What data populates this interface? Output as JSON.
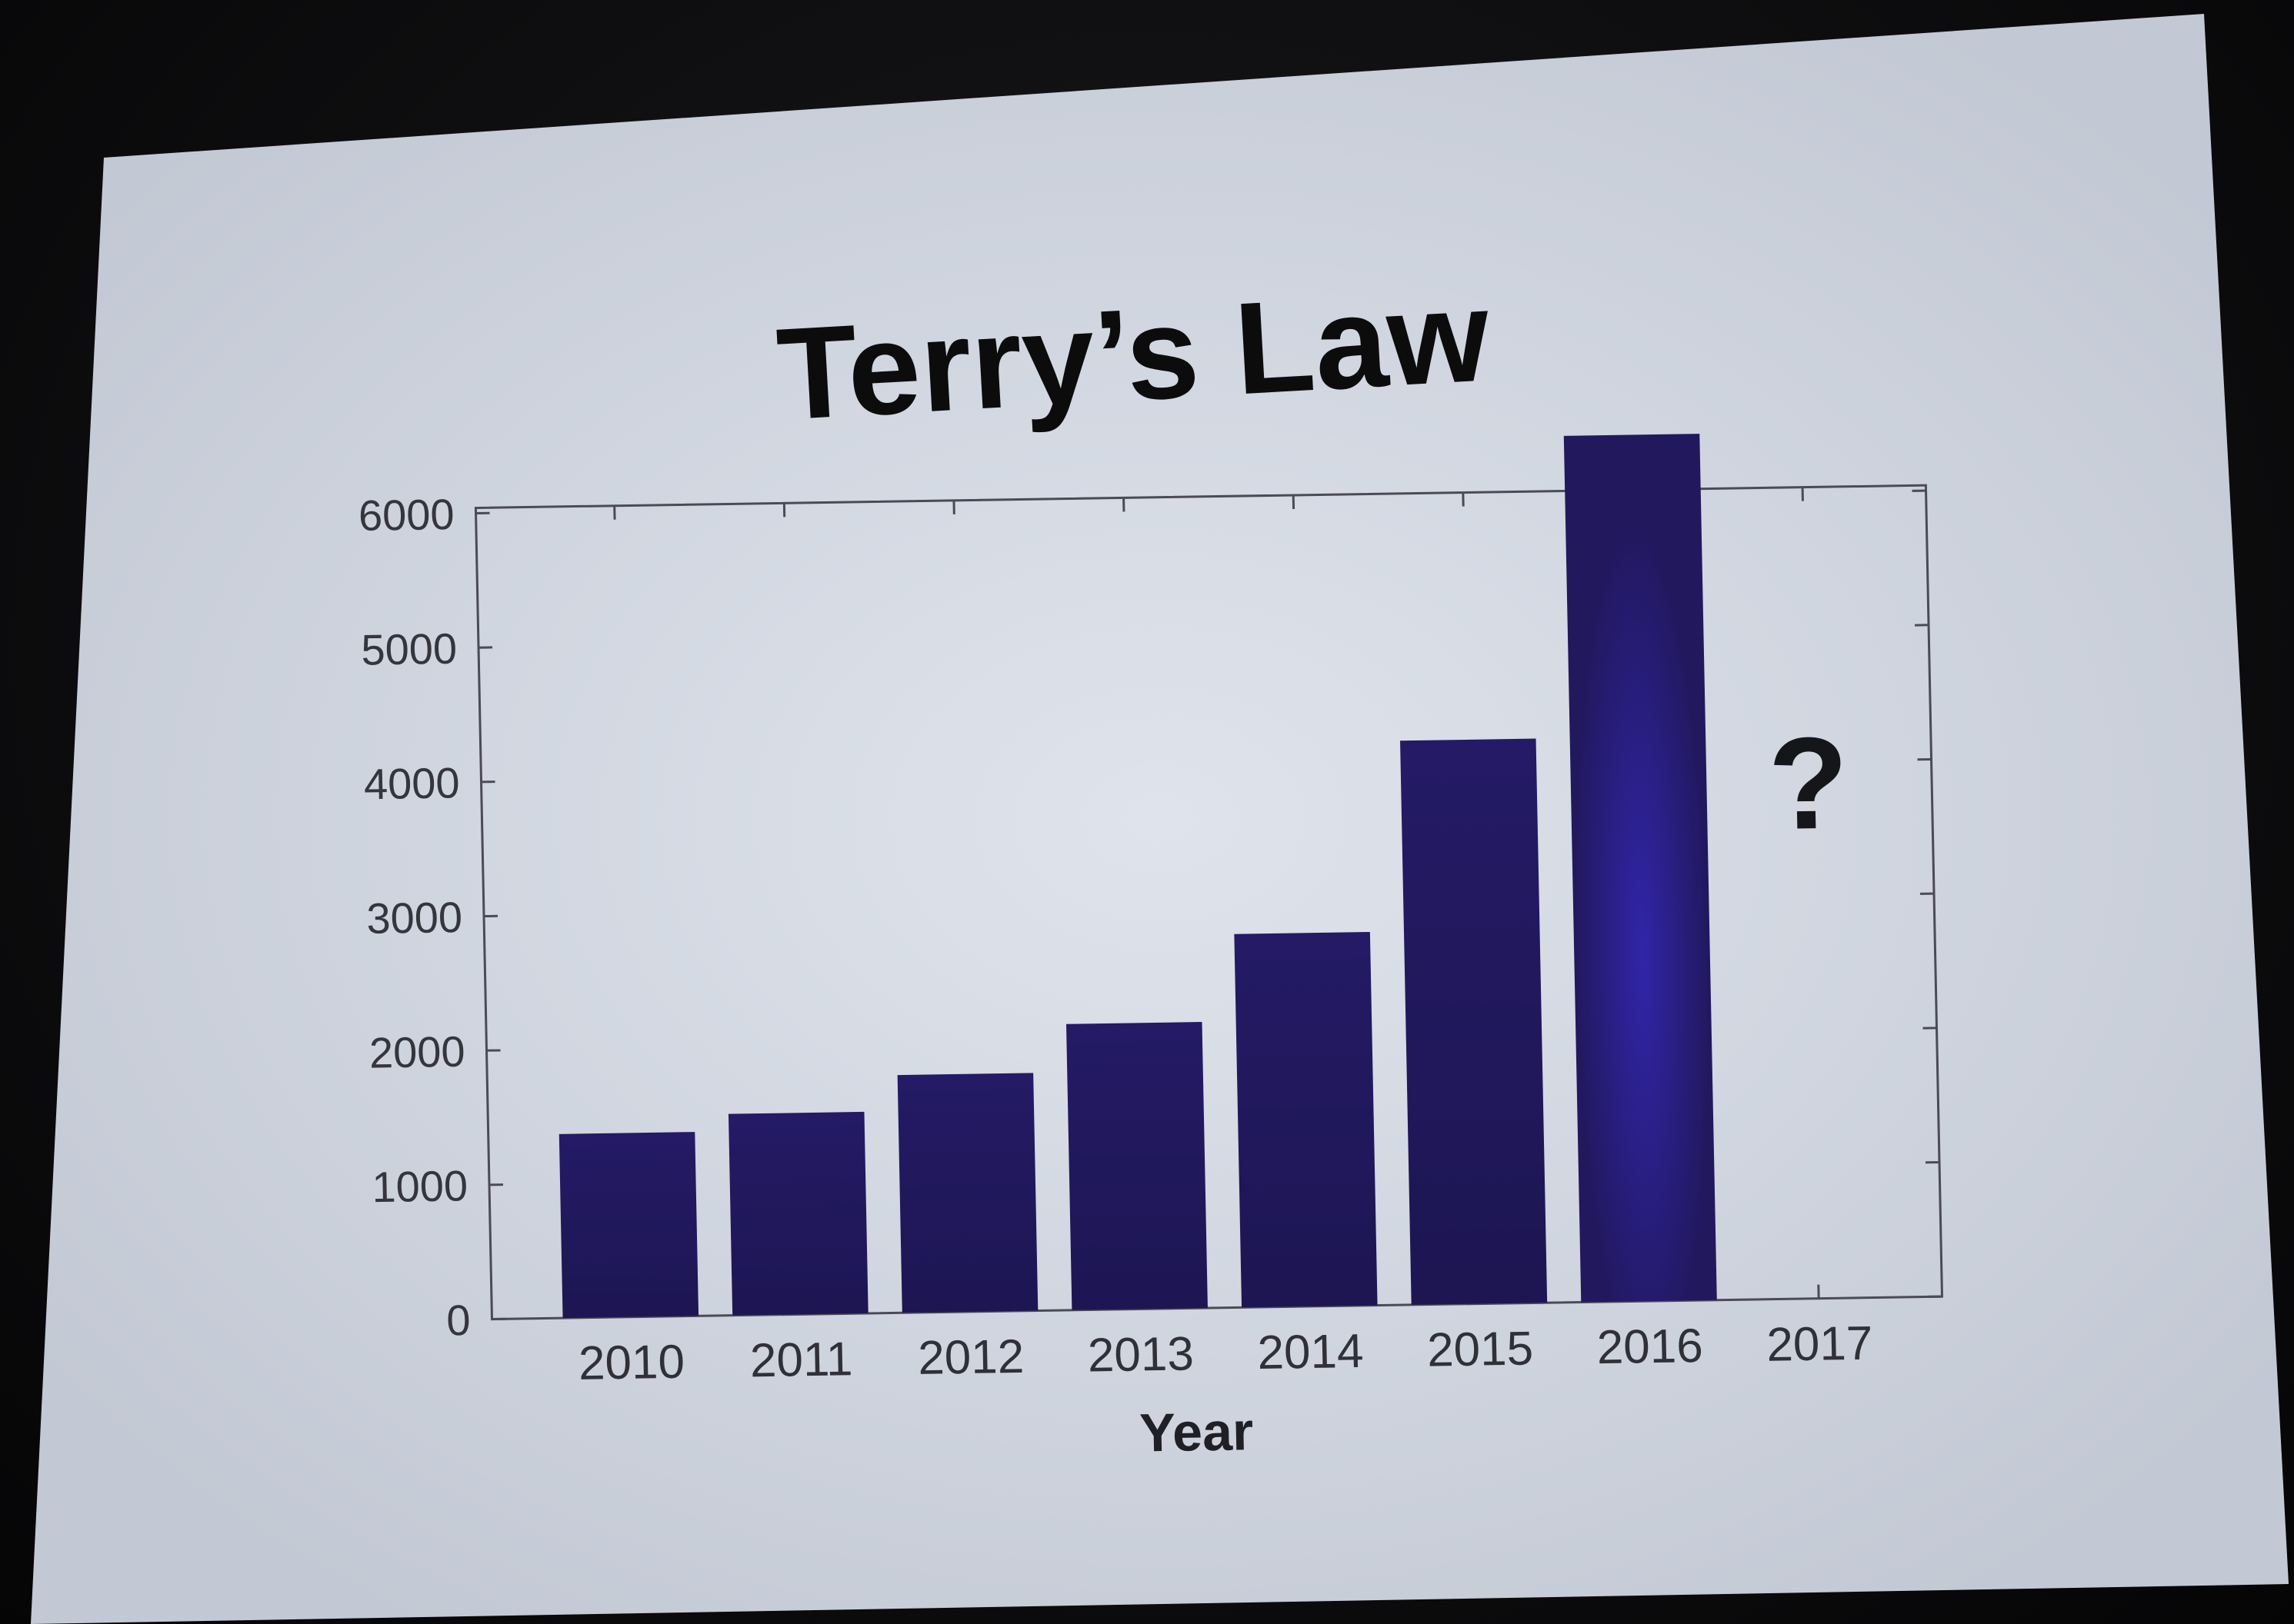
{
  "slide": {
    "background": "#d3d9e3",
    "bar_color": "#22185e",
    "highlight_color": "#2a1fa0"
  },
  "chart_data": {
    "type": "bar",
    "title": "Terry’s Law",
    "xlabel": "Year",
    "ylabel": "",
    "categories": [
      "2010",
      "2011",
      "2012",
      "2013",
      "2014",
      "2015",
      "2016",
      "2017"
    ],
    "values": [
      1370,
      1500,
      1770,
      2130,
      2780,
      4200,
      6450,
      null
    ],
    "ylim": [
      0,
      6000
    ],
    "yticks": [
      "0",
      "1000",
      "2000",
      "3000",
      "4000",
      "5000",
      "6000"
    ],
    "grid": false,
    "annotations": [
      {
        "category": "2017",
        "text": "?"
      }
    ]
  }
}
